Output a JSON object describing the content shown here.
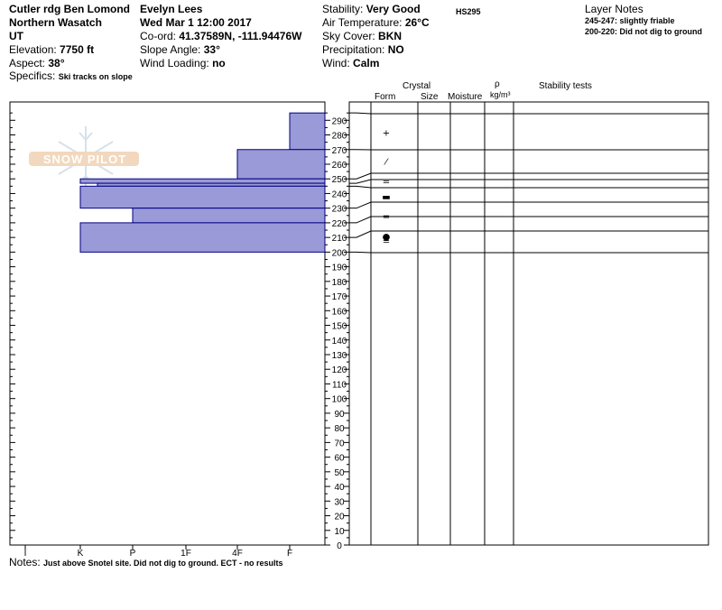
{
  "site": {
    "location": "Cutler rdg Ben Lomond",
    "range": "Northern Wasatch",
    "state": "UT",
    "elevation_label": "Elevation:",
    "elevation_value": "7750 ft",
    "aspect_label": "Aspect:",
    "aspect_value": "38°",
    "specifics_label": "Specifics:",
    "specifics_value": "Ski tracks on slope"
  },
  "observer": {
    "name": "Evelyn Lees",
    "datetime": "Wed Mar 1 12:00 2017",
    "coord_label": "Co-ord:",
    "coord_value": "41.37589N, -111.94476W",
    "slope_label": "Slope Angle:",
    "slope_value": "33°",
    "wind_loading_label": "Wind Loading:",
    "wind_loading_value": "no"
  },
  "conditions": {
    "stability_label": "Stability:",
    "stability_value": "Very Good",
    "hs": "HS295",
    "air_temp_label": "Air Temperature:",
    "air_temp_value": "26°C",
    "sky_label": "Sky Cover:",
    "sky_value": "BKN",
    "precip_label": "Precipitation:",
    "precip_value": "NO",
    "wind_label": "Wind:",
    "wind_value": "Calm"
  },
  "layer_notes": {
    "title": "Layer Notes",
    "items": [
      "245-247: slightly friable",
      "200-220: Did not dig to ground"
    ]
  },
  "columns": {
    "crystal": "Crystal",
    "form": "Form",
    "size": "Size",
    "moisture": "Moisture",
    "rho": "ρ",
    "density_unit": "kg/m³",
    "stability_tests": "Stability tests"
  },
  "notes": {
    "label": "Notes:",
    "value": "Just above Snotel site.  Did not dig to ground.  ECT - no results"
  },
  "watermark": "SNOW PILOT",
  "colors": {
    "layer_fill": "#9a9ad8",
    "layer_stroke": "#000080"
  },
  "chart_data": {
    "type": "bar",
    "orientation": "horizontal",
    "x_categories": [
      "I",
      "K",
      "P",
      "1F",
      "4F",
      "F"
    ],
    "y_ticks": [
      0,
      10,
      20,
      30,
      40,
      50,
      60,
      70,
      80,
      90,
      100,
      110,
      120,
      130,
      140,
      150,
      160,
      170,
      180,
      190,
      200,
      210,
      220,
      230,
      240,
      250,
      260,
      270,
      280,
      290
    ],
    "ylim": [
      0,
      295
    ],
    "layers": [
      {
        "top": 295,
        "bottom": 270,
        "hardness": "F",
        "form": "+"
      },
      {
        "top": 270,
        "bottom": 250,
        "hardness": "4F",
        "form": "⁄"
      },
      {
        "top": 250,
        "bottom": 247,
        "hardness": "K",
        "form": "="
      },
      {
        "top": 247,
        "bottom": 245,
        "hardness": "K-",
        "form": ""
      },
      {
        "top": 245,
        "bottom": 230,
        "hardness": "K",
        "form": "▬"
      },
      {
        "top": 230,
        "bottom": 220,
        "hardness": "P",
        "form": "="
      },
      {
        "top": 220,
        "bottom": 200,
        "hardness": "K",
        "form": "●"
      },
      {
        "top": 200,
        "bottom": 200,
        "hardness": "K",
        "form": "="
      }
    ],
    "form_labels": [
      {
        "depth": 282,
        "symbol": "+"
      },
      {
        "depth": 262,
        "symbol": "⁄"
      },
      {
        "depth": 248.5,
        "symbol": "="
      },
      {
        "depth": 238,
        "symbol": "▬"
      },
      {
        "depth": 225,
        "symbol": "="
      },
      {
        "depth": 211,
        "symbol": "●"
      },
      {
        "depth": 208,
        "symbol": "="
      }
    ]
  }
}
